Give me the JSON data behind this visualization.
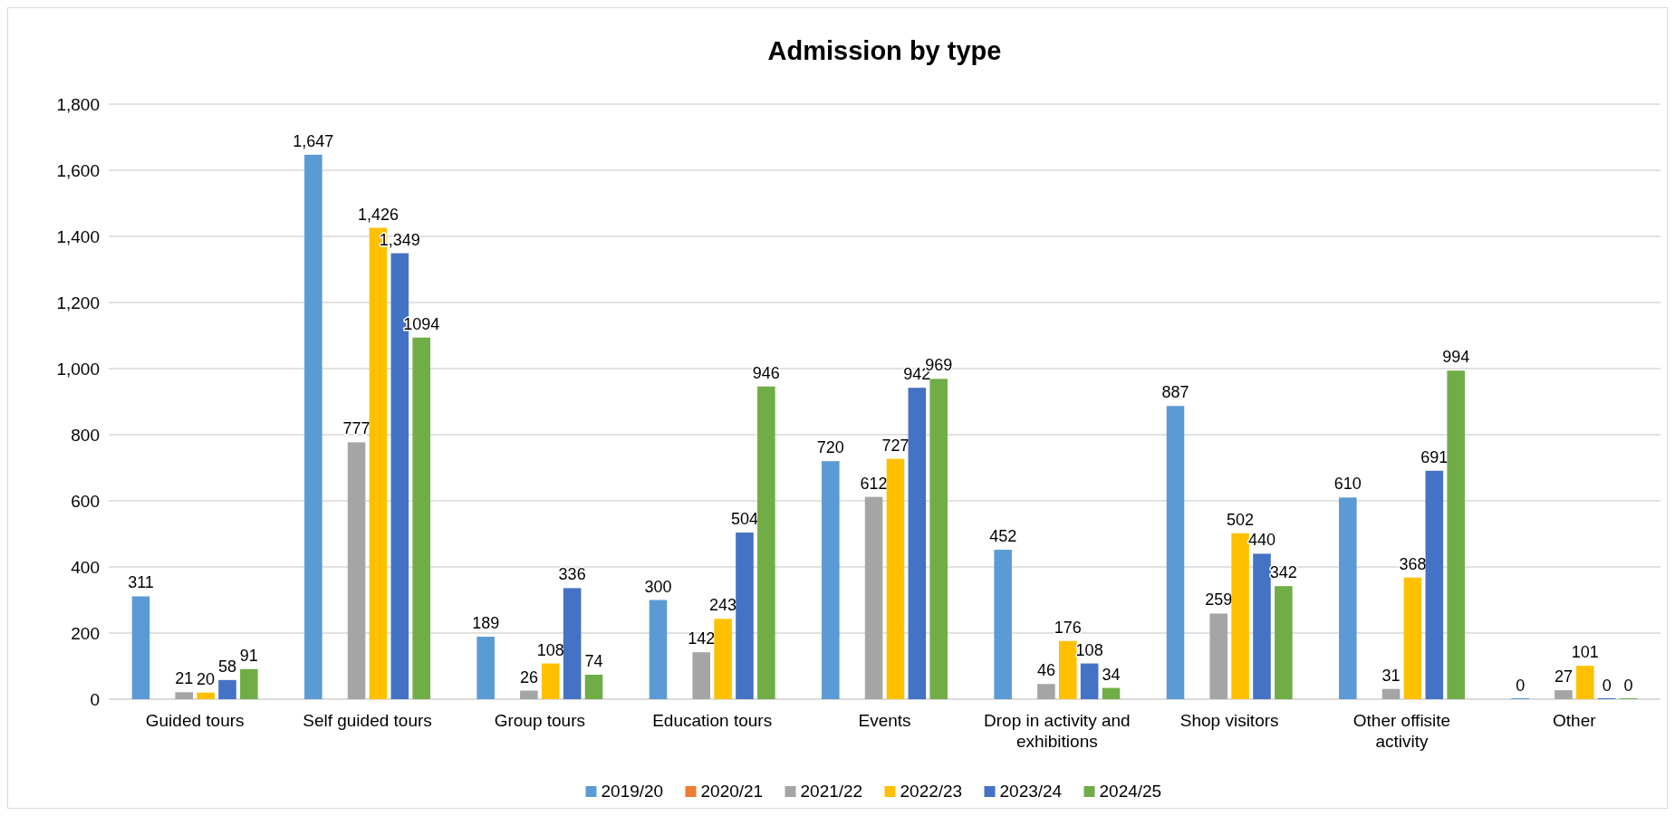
{
  "chart_data": {
    "type": "bar",
    "title": "Admission by type",
    "categories": [
      "Guided tours",
      "Self guided tours",
      "Group tours",
      "Education tours",
      "Events",
      "Drop in activity and exhibitions",
      "Shop visitors",
      "Other offisite activity",
      "Other"
    ],
    "series": [
      {
        "name": "2019/20",
        "color": "#5b9bd5",
        "values": [
          311,
          1647,
          189,
          300,
          720,
          452,
          887,
          610,
          0
        ],
        "value_labels": [
          "311",
          "1,647",
          "189",
          "300",
          "720",
          "452",
          "887",
          "610",
          "0"
        ]
      },
      {
        "name": "2020/21",
        "color": "#ed7d31",
        "values": [
          null,
          null,
          null,
          null,
          null,
          null,
          null,
          null,
          null
        ],
        "value_labels": [
          null,
          null,
          null,
          null,
          null,
          null,
          null,
          null,
          null
        ]
      },
      {
        "name": "2021/22",
        "color": "#a5a5a5",
        "values": [
          21,
          777,
          26,
          142,
          612,
          46,
          259,
          31,
          27
        ],
        "value_labels": [
          "21",
          "777",
          "26",
          "142",
          "612",
          "46",
          "259",
          "31",
          "27"
        ]
      },
      {
        "name": "2022/23",
        "color": "#ffc000",
        "values": [
          20,
          1426,
          108,
          243,
          727,
          176,
          502,
          368,
          101
        ],
        "value_labels": [
          "20",
          "1,426",
          "108",
          "243",
          "727",
          "176",
          "502",
          "368",
          "101"
        ]
      },
      {
        "name": "2023/24",
        "color": "#4472c4",
        "values": [
          58,
          1349,
          336,
          504,
          942,
          108,
          440,
          691,
          0
        ],
        "value_labels": [
          "58",
          "1,349",
          "336",
          "504",
          "942",
          "108",
          "440",
          "691",
          "0"
        ]
      },
      {
        "name": "2024/25",
        "color": "#70ad47",
        "values": [
          91,
          1094,
          74,
          946,
          969,
          34,
          342,
          994,
          0
        ],
        "value_labels": [
          "91",
          "1094",
          "74",
          "946",
          "969",
          "34",
          "342",
          "994",
          "0"
        ]
      }
    ],
    "ylim": [
      0,
      1800
    ],
    "yticks": [
      {
        "value": 0,
        "label": "0"
      },
      {
        "value": 200,
        "label": "200"
      },
      {
        "value": 400,
        "label": "400"
      },
      {
        "value": 600,
        "label": "600"
      },
      {
        "value": 800,
        "label": "800"
      },
      {
        "value": 1000,
        "label": "1,000"
      },
      {
        "value": 1200,
        "label": "1,200"
      },
      {
        "value": 1400,
        "label": "1,400"
      },
      {
        "value": 1600,
        "label": "1,600"
      },
      {
        "value": 1800,
        "label": "1,800"
      }
    ],
    "grid": "y",
    "legend": "bottom"
  }
}
